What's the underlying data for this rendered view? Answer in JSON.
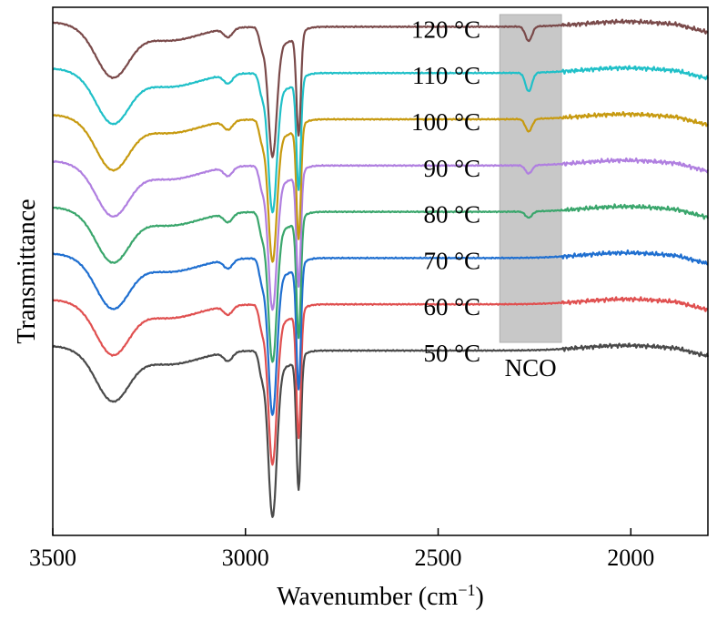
{
  "chart_data": {
    "type": "line",
    "title": "",
    "xlabel": "Wavenumber (cm",
    "xlabel_sup": "−1",
    "xlabel_tail": ")",
    "ylabel": "Transmittance",
    "xlim": [
      3500,
      1800
    ],
    "x_reversed": true,
    "x_ticks": [
      3500,
      3000,
      2500,
      2000
    ],
    "x_tick_labels": [
      "3500",
      "3000",
      "2500",
      "2000"
    ],
    "y_ticks_shown": false,
    "grid": false,
    "legend": "inline labels, right of center",
    "highlight": {
      "label": "NCO",
      "x_from": 2340,
      "x_to": 2180,
      "color": "#c8c8c8"
    },
    "series": [
      {
        "name": "50 °C",
        "color": "#4a4a4a",
        "offset": 0,
        "peak_scale": 1.0,
        "nco_dip": 0
      },
      {
        "name": "60 °C",
        "color": "#e05050",
        "offset": 1,
        "peak_scale": 0.96,
        "nco_dip": 0
      },
      {
        "name": "70 °C",
        "color": "#1f6fd0",
        "offset": 2,
        "peak_scale": 0.94,
        "nco_dip": 0
      },
      {
        "name": "80 °C",
        "color": "#3aa66c",
        "offset": 3,
        "peak_scale": 0.9,
        "nco_dip": 0.03
      },
      {
        "name": "90 °C",
        "color": "#b07fe0",
        "offset": 4,
        "peak_scale": 0.86,
        "nco_dip": 0.04
      },
      {
        "name": "100 °C",
        "color": "#c79a10",
        "offset": 5,
        "peak_scale": 0.85,
        "nco_dip": 0.06
      },
      {
        "name": "110 °C",
        "color": "#20c0c8",
        "offset": 6,
        "peak_scale": 0.83,
        "nco_dip": 0.09
      },
      {
        "name": "120 °C",
        "color": "#7a4a4a",
        "offset": 7,
        "peak_scale": 0.77,
        "nco_dip": 0.07
      }
    ]
  }
}
